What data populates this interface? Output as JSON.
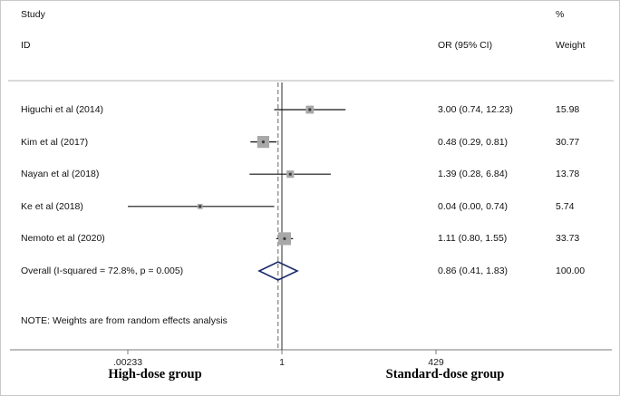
{
  "header": {
    "study": "Study",
    "id": "ID",
    "or_ci": "OR (95% CI)",
    "percent": "%",
    "weight": "Weight"
  },
  "note": "NOTE: Weights are from random effects analysis",
  "footer": {
    "left_label": "High-dose group",
    "right_label": "Standard-dose group"
  },
  "axis": {
    "ticks": [
      {
        "label": ".00233",
        "value": 0.00233
      },
      {
        "label": "1",
        "value": 1
      },
      {
        "label": "429",
        "value": 429
      }
    ]
  },
  "colors": {
    "square": "#a8a8a8",
    "point_dot": "#3a3a3a",
    "ci_line": "#141414",
    "diamond": "#1b2a6b",
    "null_line": "#2b2b2b",
    "dashed_line": "#666666",
    "axis_line": "#7a7a7a",
    "separator": "#b3b3b3"
  },
  "chart_data": {
    "type": "forest",
    "x_scale": "log",
    "x_domain": [
      0.00233,
      429
    ],
    "null_line": 1,
    "overall_line": 0.86,
    "studies": [
      {
        "id": "Higuchi et al (2014)",
        "or": 3.0,
        "ci_low": 0.74,
        "ci_high": 12.23,
        "or_text": "3.00 (0.74, 12.23)",
        "weight": 15.98,
        "weight_text": "15.98"
      },
      {
        "id": "Kim et al (2017)",
        "or": 0.48,
        "ci_low": 0.29,
        "ci_high": 0.81,
        "or_text": "0.48 (0.29, 0.81)",
        "weight": 30.77,
        "weight_text": "30.77"
      },
      {
        "id": "Nayan et al (2018)",
        "or": 1.39,
        "ci_low": 0.28,
        "ci_high": 6.84,
        "or_text": "1.39 (0.28, 6.84)",
        "weight": 13.78,
        "weight_text": "13.78"
      },
      {
        "id": "Ke et al (2018)",
        "or": 0.04,
        "ci_low": 0.0,
        "ci_high": 0.74,
        "or_text": "0.04 (0.00, 0.74)",
        "weight": 5.74,
        "weight_text": "5.74"
      },
      {
        "id": "Nemoto et al (2020)",
        "or": 1.11,
        "ci_low": 0.8,
        "ci_high": 1.55,
        "or_text": "1.11 (0.80, 1.55)",
        "weight": 33.73,
        "weight_text": "33.73"
      }
    ],
    "overall": {
      "id": "Overall  (I-squared = 72.8%, p = 0.005)",
      "or": 0.86,
      "ci_low": 0.41,
      "ci_high": 1.83,
      "or_text": "0.86 (0.41, 1.83)",
      "weight_text": "100.00"
    }
  }
}
